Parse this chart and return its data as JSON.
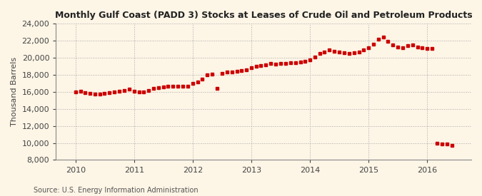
{
  "title": "Monthly Gulf Coast (PADD 3) Stocks at Leases of Crude Oil and Petroleum Products",
  "ylabel": "Thousand Barrels",
  "source": "Source: U.S. Energy Information Administration",
  "background_color": "#fdf5e6",
  "ylim": [
    8000,
    24000
  ],
  "yticks": [
    8000,
    10000,
    12000,
    14000,
    16000,
    18000,
    20000,
    22000,
    24000
  ],
  "marker_color": "#cc0000",
  "marker": "s",
  "markersize": 3.5,
  "linewidth": 0,
  "data": {
    "2010-01": 16000,
    "2010-02": 16100,
    "2010-03": 15950,
    "2010-04": 15800,
    "2010-05": 15750,
    "2010-06": 15700,
    "2010-07": 15800,
    "2010-08": 15900,
    "2010-09": 16000,
    "2010-10": 16100,
    "2010-11": 16200,
    "2010-12": 16300,
    "2011-01": 16100,
    "2011-02": 16000,
    "2011-03": 16000,
    "2011-04": 16200,
    "2011-05": 16400,
    "2011-06": 16500,
    "2011-07": 16600,
    "2011-08": 16700,
    "2011-09": 16700,
    "2011-10": 16700,
    "2011-11": 16700,
    "2011-12": 16700,
    "2012-01": 17000,
    "2012-02": 17200,
    "2012-03": 17500,
    "2012-04": 18000,
    "2012-05": 18100,
    "2012-06": 16400,
    "2012-07": 18200,
    "2012-08": 18300,
    "2012-09": 18350,
    "2012-10": 18400,
    "2012-11": 18500,
    "2012-12": 18600,
    "2013-01": 18800,
    "2013-02": 19000,
    "2013-03": 19100,
    "2013-04": 19200,
    "2013-05": 19300,
    "2013-06": 19250,
    "2013-07": 19300,
    "2013-08": 19350,
    "2013-09": 19400,
    "2013-10": 19450,
    "2013-11": 19500,
    "2013-12": 19600,
    "2014-01": 19800,
    "2014-02": 20100,
    "2014-03": 20500,
    "2014-04": 20700,
    "2014-05": 20900,
    "2014-06": 20800,
    "2014-07": 20700,
    "2014-08": 20600,
    "2014-09": 20500,
    "2014-10": 20600,
    "2014-11": 20700,
    "2014-12": 20900,
    "2015-01": 21200,
    "2015-02": 21600,
    "2015-03": 22200,
    "2015-04": 22400,
    "2015-05": 21900,
    "2015-06": 21500,
    "2015-07": 21300,
    "2015-08": 21200,
    "2015-09": 21400,
    "2015-10": 21500,
    "2015-11": 21300,
    "2015-12": 21200,
    "2016-01": 21100,
    "2016-02": 21100,
    "2016-03": 10000,
    "2016-04": 9900,
    "2016-05": 9850,
    "2016-06": 9750
  }
}
